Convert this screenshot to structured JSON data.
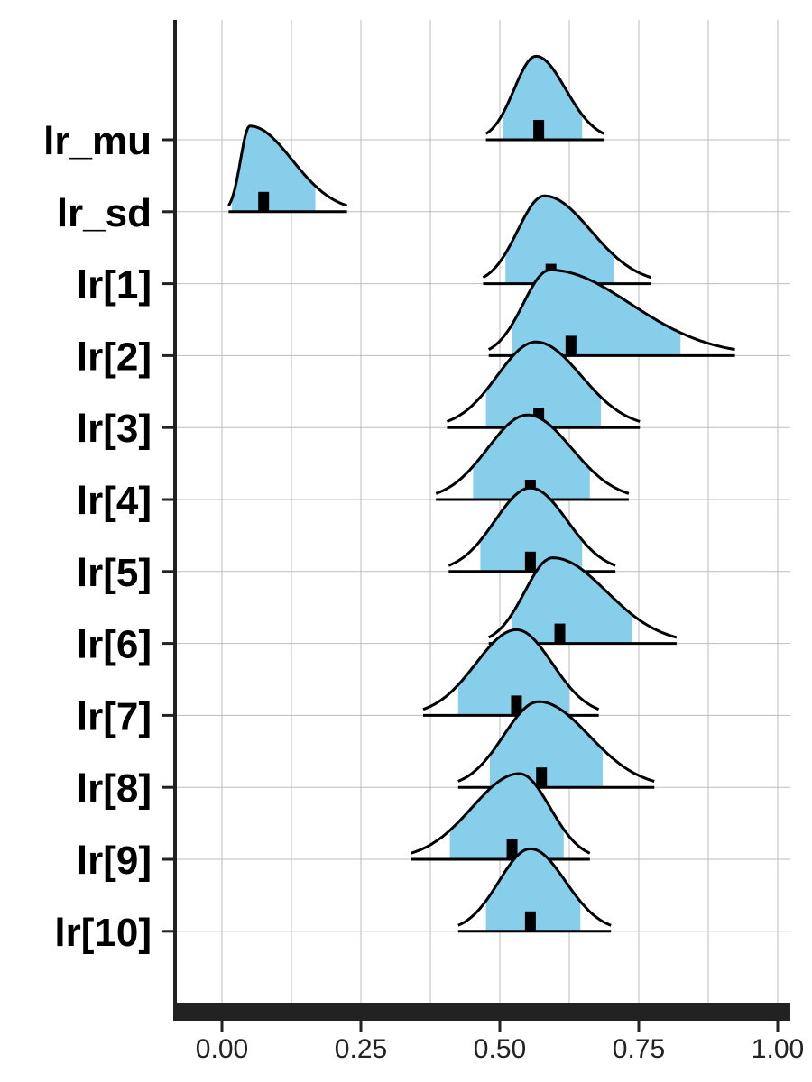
{
  "chart_data": {
    "type": "ridgeline",
    "title": "",
    "xlabel": "",
    "ylabel": "",
    "xlim": [
      -0.09,
      1.02
    ],
    "x_ticks": [
      0.0,
      0.25,
      0.5,
      0.75,
      1.0
    ],
    "x_tick_labels": [
      "0.00",
      "0.25",
      "0.50",
      "0.75",
      "1.00"
    ],
    "grid": true,
    "colors": {
      "fill": "#87ceeb",
      "outline": "#000000",
      "median": "#000000"
    },
    "series": [
      {
        "name": "lr_mu",
        "min": 0.475,
        "max": 0.688,
        "ci_low": 0.505,
        "ci_high": 0.648,
        "median": 0.57,
        "mode": 0.565,
        "peak": 0.78
      },
      {
        "name": "lr_sd",
        "min": 0.012,
        "max": 0.225,
        "ci_low": 0.018,
        "ci_high": 0.168,
        "median": 0.075,
        "mode": 0.05,
        "peak": 0.8
      },
      {
        "name": "lr[1]",
        "min": 0.47,
        "max": 0.772,
        "ci_low": 0.51,
        "ci_high": 0.705,
        "median": 0.592,
        "mode": 0.58,
        "peak": 0.82
      },
      {
        "name": "lr[2]",
        "min": 0.48,
        "max": 0.923,
        "ci_low": 0.522,
        "ci_high": 0.825,
        "median": 0.628,
        "mode": 0.59,
        "peak": 0.8
      },
      {
        "name": "lr[3]",
        "min": 0.405,
        "max": 0.752,
        "ci_low": 0.475,
        "ci_high": 0.682,
        "median": 0.57,
        "mode": 0.565,
        "peak": 0.8
      },
      {
        "name": "lr[4]",
        "min": 0.385,
        "max": 0.732,
        "ci_low": 0.452,
        "ci_high": 0.662,
        "median": 0.555,
        "mode": 0.55,
        "peak": 0.79
      },
      {
        "name": "lr[5]",
        "min": 0.408,
        "max": 0.708,
        "ci_low": 0.465,
        "ci_high": 0.648,
        "median": 0.555,
        "mode": 0.555,
        "peak": 0.78
      },
      {
        "name": "lr[6]",
        "min": 0.48,
        "max": 0.818,
        "ci_low": 0.522,
        "ci_high": 0.738,
        "median": 0.608,
        "mode": 0.595,
        "peak": 0.8
      },
      {
        "name": "lr[7]",
        "min": 0.362,
        "max": 0.678,
        "ci_low": 0.425,
        "ci_high": 0.625,
        "median": 0.53,
        "mode": 0.53,
        "peak": 0.8
      },
      {
        "name": "lr[8]",
        "min": 0.425,
        "max": 0.778,
        "ci_low": 0.482,
        "ci_high": 0.685,
        "median": 0.575,
        "mode": 0.57,
        "peak": 0.8
      },
      {
        "name": "lr[9]",
        "min": 0.34,
        "max": 0.662,
        "ci_low": 0.41,
        "ci_high": 0.615,
        "median": 0.522,
        "mode": 0.535,
        "peak": 0.8
      },
      {
        "name": "lr[10]",
        "min": 0.425,
        "max": 0.7,
        "ci_low": 0.475,
        "ci_high": 0.645,
        "median": 0.555,
        "mode": 0.555,
        "peak": 0.77
      }
    ]
  }
}
